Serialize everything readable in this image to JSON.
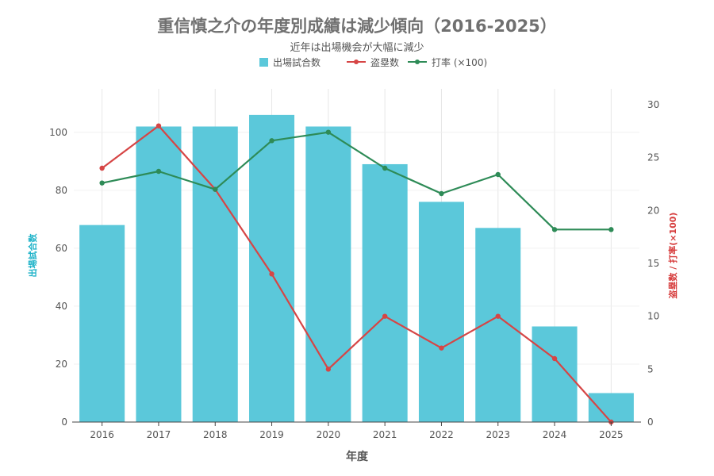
{
  "chart_data": {
    "type": "bar",
    "title": "重信慎之介の年度別成績は減少傾向（2016-2025）",
    "subtitle": "近年は出場機会が大幅に減少",
    "xlabel": "年度",
    "ylabel_left": "出場試合数",
    "ylabel_right": "盗塁数 / 打率(×100)",
    "categories": [
      "2016",
      "2017",
      "2018",
      "2019",
      "2020",
      "2021",
      "2022",
      "2023",
      "2024",
      "2025"
    ],
    "ylim_left": [
      0,
      115
    ],
    "ylim_right": [
      0,
      31.5
    ],
    "yticks_left": [
      0,
      20,
      40,
      60,
      80,
      100
    ],
    "yticks_right": [
      0,
      5,
      10,
      15,
      20,
      25,
      30
    ],
    "legend_position": "top-center",
    "series": [
      {
        "name": "出場試合数",
        "kind": "bar",
        "axis": "left",
        "color": "#5BC8DA",
        "values": [
          68,
          102,
          102,
          106,
          102,
          89,
          76,
          67,
          33,
          10
        ]
      },
      {
        "name": "盗塁数",
        "kind": "line",
        "axis": "right",
        "color": "#D64545",
        "values": [
          24,
          28,
          22,
          14,
          5,
          10,
          7,
          10,
          6,
          0
        ]
      },
      {
        "name": "打率 (×100)",
        "kind": "line",
        "axis": "right",
        "color": "#2E8B57",
        "values": [
          22.6,
          23.7,
          22.0,
          26.6,
          27.4,
          24.0,
          21.6,
          23.4,
          18.2,
          18.2
        ]
      }
    ]
  }
}
